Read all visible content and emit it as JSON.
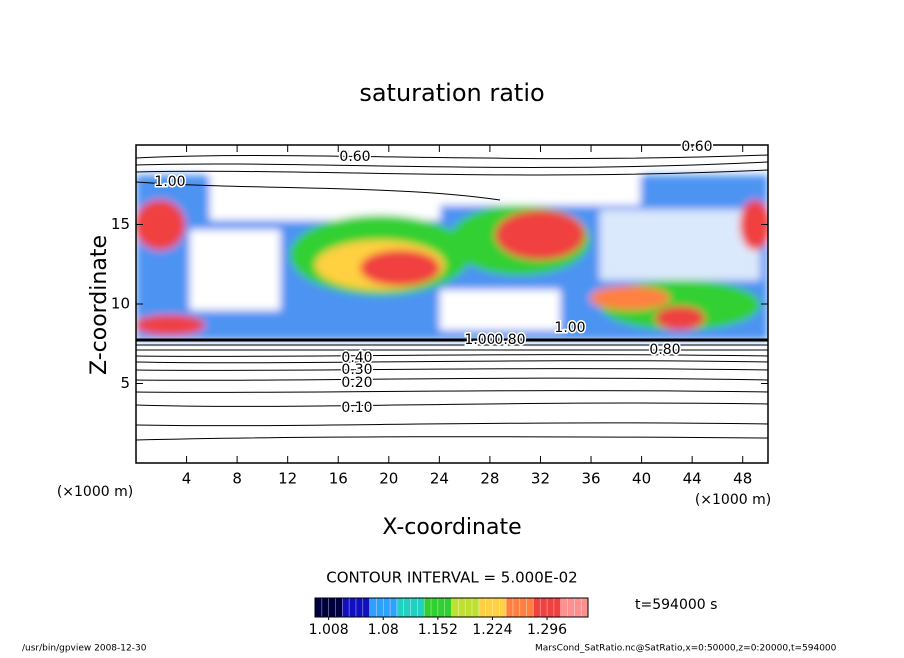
{
  "chart_data": {
    "type": "contour",
    "title": "saturation ratio",
    "xlabel": "X-coordinate",
    "ylabel": "Z-coordinate",
    "x_unit": "(×1000 m)",
    "y_unit": "(×1000 m)",
    "xlim": [
      0,
      50
    ],
    "xticks": [
      4,
      8,
      12,
      16,
      20,
      24,
      28,
      32,
      36,
      40,
      44,
      48
    ],
    "ylim": [
      0,
      20
    ],
    "yticks": [
      5,
      10,
      15
    ],
    "contour_labels": [
      "0.60",
      "0.60",
      "1.00",
      "0.10",
      "0.20",
      "0.30",
      "0.40",
      "1.00",
      "1.00",
      "0.80",
      "0.80"
    ],
    "contour_interval": "CONTOUR INTERVAL = 5.000E-02",
    "colorbar": {
      "lim": [
        0.99,
        1.35
      ],
      "ticks": [
        1.008,
        1.08,
        1.152,
        1.224,
        1.296
      ],
      "colors": [
        "#000040",
        "#1010c0",
        "#30a0ff",
        "#20d0c0",
        "#30d030",
        "#c0e030",
        "#ffd040",
        "#ff8040",
        "#f04040",
        "#ff9090"
      ]
    },
    "time_label": "t=594000 s",
    "footer_left": "/usr/bin/gpview   2008-12-30",
    "footer_right": "MarsCond_SatRatio.nc@SatRatio,x=0:50000,z=0:20000,t=594000"
  }
}
